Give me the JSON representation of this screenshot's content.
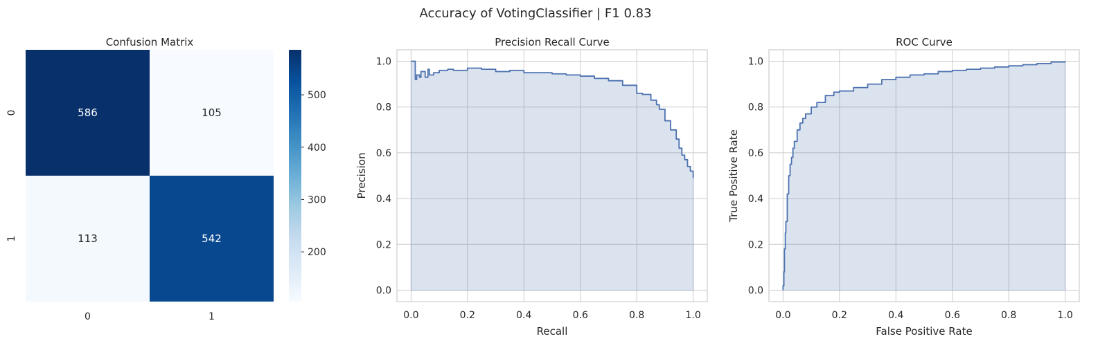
{
  "figure": {
    "suptitle": "Accuracy of VotingClassifier | F1 0.83"
  },
  "colors": {
    "curve": "#4c72b0",
    "fill": "#dae0ee",
    "grid": "#cccccc",
    "spine": "#cccccc",
    "heat_dark": "#08306b",
    "heat_light": "#f7fbff"
  },
  "chart_data": [
    {
      "type": "heatmap",
      "title": "Confusion Matrix",
      "xticklabels": [
        "0",
        "1"
      ],
      "yticklabels": [
        "0",
        "1"
      ],
      "values": [
        [
          586,
          105
        ],
        [
          113,
          542
        ]
      ],
      "colorbar": {
        "range": [
          105,
          586
        ],
        "ticks": [
          200,
          300,
          400,
          500
        ],
        "colormap": "Blues"
      }
    },
    {
      "type": "area",
      "title": "Precision Recall Curve",
      "xlabel": "Recall",
      "ylabel": "Precision",
      "xlim": [
        -0.05,
        1.05
      ],
      "ylim": [
        -0.05,
        1.05
      ],
      "xticks": [
        0.0,
        0.2,
        0.4,
        0.6,
        0.8,
        1.0
      ],
      "yticks": [
        0.0,
        0.2,
        0.4,
        0.6,
        0.8,
        1.0
      ],
      "grid": true,
      "series": [
        {
          "x": [
            0.0,
            0.015,
            0.015,
            0.02,
            0.03,
            0.035,
            0.05,
            0.06,
            0.065,
            0.08,
            0.1,
            0.13,
            0.15,
            0.2,
            0.25,
            0.3,
            0.35,
            0.4,
            0.45,
            0.5,
            0.55,
            0.6,
            0.65,
            0.7,
            0.75,
            0.8,
            0.82,
            0.85,
            0.87,
            0.88,
            0.9,
            0.92,
            0.94,
            0.95,
            0.96,
            0.97,
            0.98,
            0.99,
            1.0,
            1.0
          ],
          "y": [
            1.0,
            1.0,
            0.92,
            0.94,
            0.93,
            0.955,
            0.93,
            0.965,
            0.94,
            0.95,
            0.96,
            0.965,
            0.96,
            0.97,
            0.965,
            0.955,
            0.96,
            0.95,
            0.95,
            0.945,
            0.94,
            0.935,
            0.925,
            0.915,
            0.895,
            0.86,
            0.855,
            0.83,
            0.81,
            0.79,
            0.74,
            0.7,
            0.66,
            0.62,
            0.59,
            0.57,
            0.54,
            0.52,
            0.51,
            0.49
          ]
        }
      ]
    },
    {
      "type": "area",
      "title": "ROC Curve",
      "xlabel": "False Positive Rate",
      "ylabel": "True Positive Rate",
      "xlim": [
        -0.05,
        1.05
      ],
      "ylim": [
        -0.05,
        1.05
      ],
      "xticks": [
        0.0,
        0.2,
        0.4,
        0.6,
        0.8,
        1.0
      ],
      "yticks": [
        0.0,
        0.2,
        0.4,
        0.6,
        0.8,
        1.0
      ],
      "grid": true,
      "series": [
        {
          "x": [
            0.0,
            0.0,
            0.003,
            0.005,
            0.008,
            0.01,
            0.015,
            0.02,
            0.025,
            0.03,
            0.035,
            0.04,
            0.05,
            0.06,
            0.07,
            0.08,
            0.1,
            0.12,
            0.15,
            0.18,
            0.2,
            0.25,
            0.3,
            0.35,
            0.4,
            0.45,
            0.5,
            0.55,
            0.6,
            0.65,
            0.7,
            0.75,
            0.8,
            0.85,
            0.9,
            0.95,
            1.0
          ],
          "y": [
            0.0,
            0.02,
            0.08,
            0.18,
            0.25,
            0.3,
            0.42,
            0.5,
            0.55,
            0.58,
            0.62,
            0.65,
            0.7,
            0.73,
            0.75,
            0.77,
            0.8,
            0.82,
            0.85,
            0.865,
            0.87,
            0.885,
            0.9,
            0.92,
            0.93,
            0.94,
            0.945,
            0.955,
            0.96,
            0.965,
            0.97,
            0.975,
            0.98,
            0.985,
            0.99,
            0.997,
            1.0
          ]
        }
      ]
    }
  ]
}
